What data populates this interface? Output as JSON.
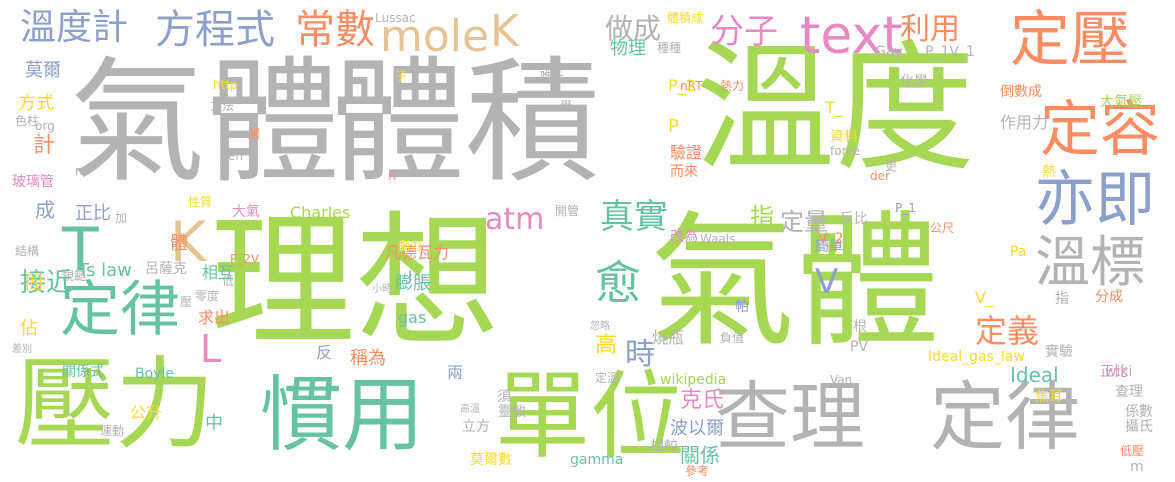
{
  "palette": {
    "green": "#a6d854",
    "gray": "#b3b3b3",
    "orange": "#fc8d62",
    "blue": "#8da0cb",
    "pink": "#e78ac3",
    "teal": "#66c2a5",
    "yellow": "#ffd92f",
    "tan": "#e5c494"
  },
  "words": [
    "氣體",
    "體積",
    "溫度",
    "理想",
    "氣體",
    "壓力",
    "單位",
    "慣用",
    "查理",
    "定律",
    "定壓",
    "定容",
    "亦即",
    "溫標",
    "定律",
    "text",
    "溫度計",
    "方程式",
    "常數",
    "mole",
    "K",
    "做成",
    "分子",
    "利用",
    "T",
    "K",
    "atm",
    "真實",
    "愈",
    "定義",
    "V",
    "時",
    "L",
    "接近",
    "Ideal",
    "Ts law",
    "波以爾",
    "克氏",
    "關係",
    "莫爾",
    "方式",
    "計",
    "成",
    "正比",
    "膨脹",
    "凡德瓦力",
    "Charles",
    "指",
    "定量",
    "反比",
    "作用力",
    "大氣壓",
    "倒數成",
    "P_1V_1",
    "化學",
    "資料",
    "nRT",
    "物理",
    "體積成",
    "Lussac",
    "Gay",
    "http",
    "方法",
    "色柱",
    "玻璃管",
    "呂薩克",
    "大氣",
    "結構",
    "間",
    "佔",
    "稱為",
    "求出",
    "相互",
    "零度",
    "公升",
    "中",
    "高",
    "gas",
    "Boyle",
    "關係式",
    "兩",
    "須",
    "相較",
    "參考",
    "莫爾數",
    "gamma",
    "wikipedia",
    "Van",
    "Ideal_gas_law",
    "實驗",
    "查理",
    "係數",
    "攝氏",
    "低壓",
    "m",
    "wiki",
    "正比",
    "焦耳",
    "分成",
    "根",
    "PV",
    "簡單",
    "V_2",
    "帕",
    "負值",
    "燒瓶",
    "改為",
    "驗證",
    "而來",
    "P_2",
    "P",
    "T_",
    "熱力",
    "唯一",
    "學",
    "子",
    "force",
    "der",
    "Waals",
    "Pa",
    "公尺",
    "P_1",
    "熱",
    "反",
    "R",
    "J",
    "P_2V",
    "動力",
    "性質",
    "加",
    "體",
    "規範",
    "差別",
    "運動",
    "高溫",
    "立方",
    "定溫",
    "開管",
    "忽略",
    "小時",
    "低",
    "壓",
    "org",
    "越",
    "en",
    "種種",
    "更",
    "n",
    "V_",
    "指",
    "靈敏"
  ]
}
